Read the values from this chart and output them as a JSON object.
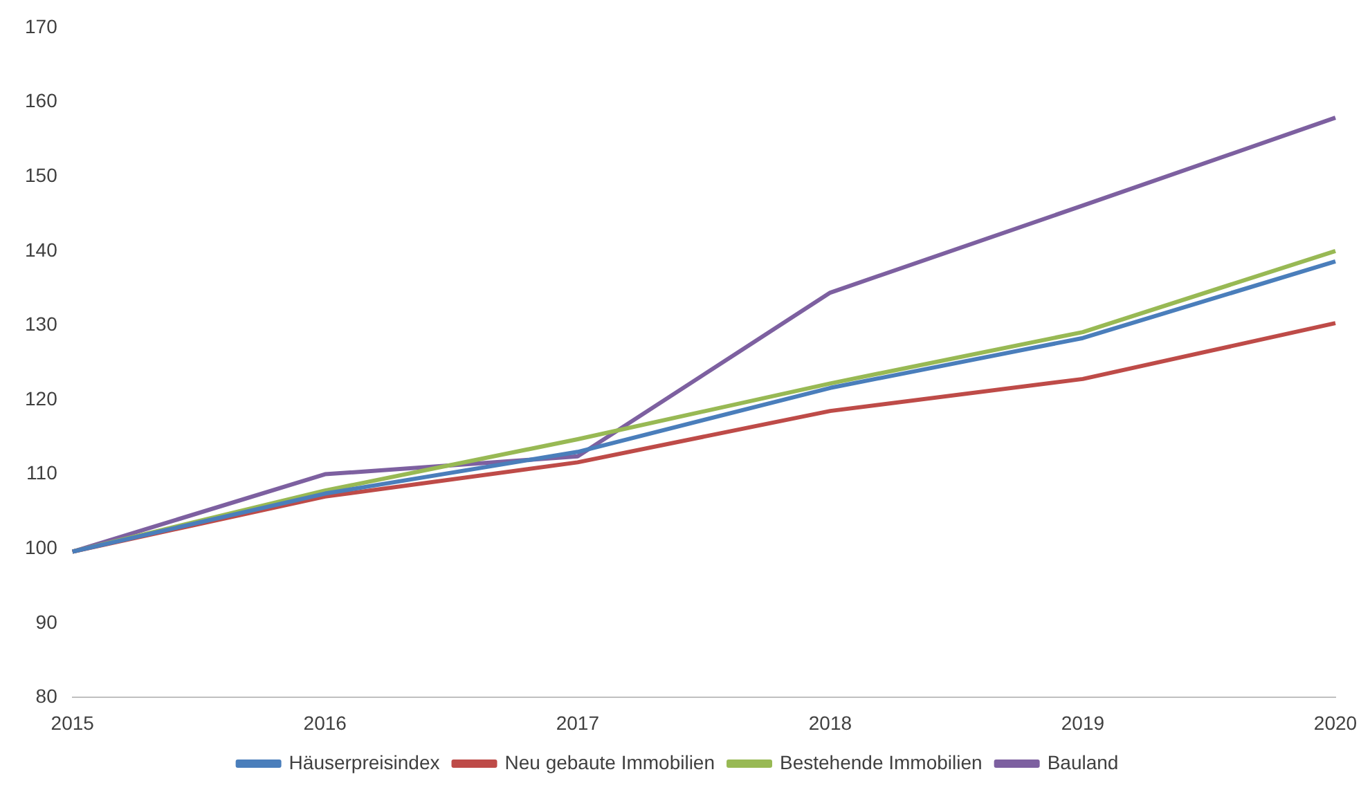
{
  "chart_data": {
    "type": "line",
    "categories": [
      "2015",
      "2016",
      "2017",
      "2018",
      "2019",
      "2020"
    ],
    "series": [
      {
        "name": "Häuserpreisindex",
        "color": "#4a7ebb",
        "values": [
          99.6,
          107.4,
          113,
          121.6,
          128.3,
          138.6
        ]
      },
      {
        "name": "Neu gebaute Immobilien",
        "color": "#be4b48",
        "values": [
          99.6,
          107,
          111.6,
          118.5,
          122.8,
          130.3
        ]
      },
      {
        "name": "Bestehende Immobilien",
        "color": "#98b954",
        "values": [
          99.6,
          107.8,
          114.7,
          122.2,
          129.1,
          140
        ]
      },
      {
        "name": "Bauland",
        "color": "#7d60a0",
        "values": [
          99.6,
          110,
          112.4,
          134.4,
          146.1,
          157.9
        ]
      }
    ],
    "ylim": [
      80,
      170
    ],
    "yticks": [
      80,
      90,
      100,
      110,
      120,
      130,
      140,
      150,
      160,
      170
    ],
    "grid": false,
    "legend": "bottom",
    "marker": "none",
    "line_style": "solid"
  }
}
